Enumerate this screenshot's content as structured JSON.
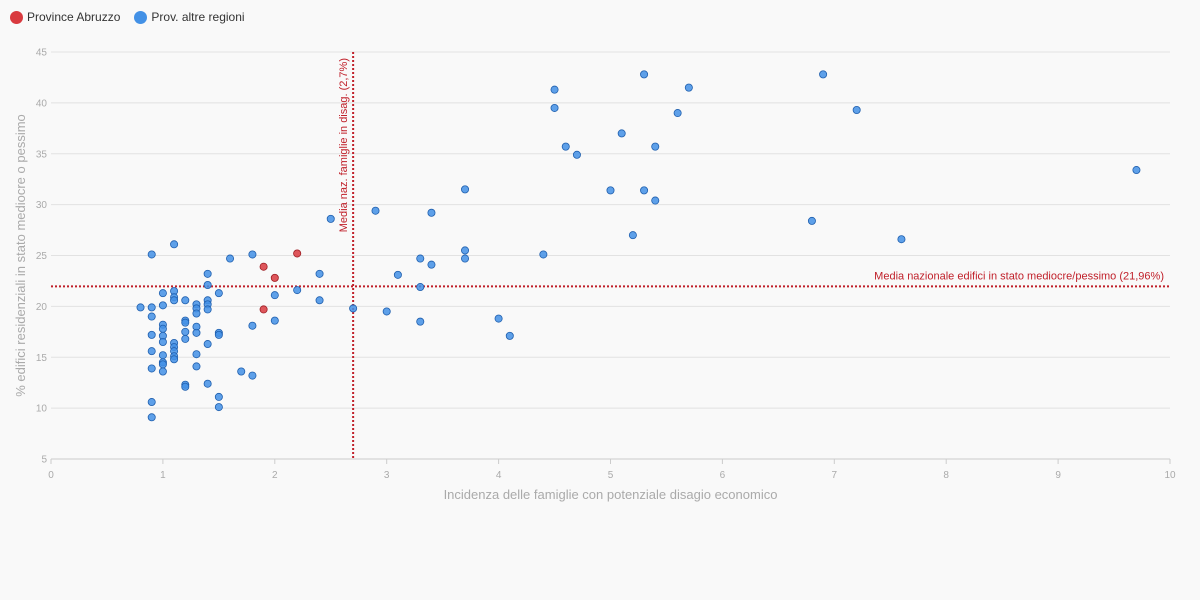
{
  "legend": [
    {
      "label": "Province Abruzzo",
      "color": "#d93a3f"
    },
    {
      "label": "Prov. altre regioni",
      "color": "#4391e6"
    }
  ],
  "chart_data": {
    "type": "scatter",
    "xlabel": "Incidenza delle famiglie con potenziale disagio economico",
    "ylabel": "% edifici residenziali in stato mediocre o pessimo",
    "xlim": [
      0,
      10
    ],
    "ylim": [
      5,
      45
    ],
    "x_ticks": [
      "0",
      "1",
      "2",
      "3",
      "4",
      "5",
      "6",
      "7",
      "8",
      "9",
      "10"
    ],
    "y_ticks": [
      "5",
      "10",
      "15",
      "20",
      "25",
      "30",
      "35",
      "40",
      "45"
    ],
    "grid": "horizontal",
    "legend_position": "top-left",
    "reference_lines": [
      {
        "axis": "y",
        "value": 21.96,
        "label": "Media nazionale edifici in stato mediocre/pessimo (21,96%)",
        "color": "#c0202a"
      },
      {
        "axis": "x",
        "value": 2.7,
        "label": "Media naz. famiglie in disag. (2,7%)",
        "color": "#c0202a"
      }
    ],
    "series": [
      {
        "name": "Province Abruzzo",
        "color": "#d93a3f",
        "points": [
          [
            1.9,
            23.9
          ],
          [
            2.0,
            22.8
          ],
          [
            2.2,
            25.2
          ],
          [
            1.9,
            19.7
          ]
        ]
      },
      {
        "name": "Prov. altre regioni",
        "color": "#4391e6",
        "points": [
          [
            0.8,
            19.9
          ],
          [
            0.9,
            25.1
          ],
          [
            0.9,
            19.9
          ],
          [
            0.9,
            19.0
          ],
          [
            0.9,
            17.2
          ],
          [
            0.9,
            15.6
          ],
          [
            0.9,
            13.9
          ],
          [
            0.9,
            10.6
          ],
          [
            0.9,
            9.1
          ],
          [
            1.0,
            21.3
          ],
          [
            1.0,
            20.1
          ],
          [
            1.0,
            18.2
          ],
          [
            1.0,
            17.8
          ],
          [
            1.0,
            17.1
          ],
          [
            1.0,
            16.5
          ],
          [
            1.0,
            15.2
          ],
          [
            1.0,
            14.5
          ],
          [
            1.0,
            14.3
          ],
          [
            1.0,
            13.6
          ],
          [
            1.1,
            26.1
          ],
          [
            1.1,
            21.5
          ],
          [
            1.1,
            20.9
          ],
          [
            1.1,
            20.6
          ],
          [
            1.1,
            16.4
          ],
          [
            1.1,
            16.0
          ],
          [
            1.1,
            15.6
          ],
          [
            1.1,
            15.1
          ],
          [
            1.1,
            14.8
          ],
          [
            1.2,
            20.6
          ],
          [
            1.2,
            18.6
          ],
          [
            1.2,
            18.4
          ],
          [
            1.2,
            17.5
          ],
          [
            1.2,
            16.8
          ],
          [
            1.2,
            12.3
          ],
          [
            1.2,
            12.1
          ],
          [
            1.3,
            20.2
          ],
          [
            1.3,
            19.8
          ],
          [
            1.3,
            19.3
          ],
          [
            1.3,
            18.0
          ],
          [
            1.3,
            17.4
          ],
          [
            1.3,
            15.3
          ],
          [
            1.3,
            14.1
          ],
          [
            1.4,
            23.2
          ],
          [
            1.4,
            22.1
          ],
          [
            1.4,
            20.6
          ],
          [
            1.4,
            20.2
          ],
          [
            1.4,
            19.7
          ],
          [
            1.4,
            16.3
          ],
          [
            1.4,
            12.4
          ],
          [
            1.5,
            21.3
          ],
          [
            1.5,
            17.4
          ],
          [
            1.5,
            17.2
          ],
          [
            1.5,
            11.1
          ],
          [
            1.5,
            10.1
          ],
          [
            1.6,
            24.7
          ],
          [
            1.7,
            13.6
          ],
          [
            1.8,
            25.1
          ],
          [
            1.8,
            18.1
          ],
          [
            1.8,
            13.2
          ],
          [
            2.0,
            21.1
          ],
          [
            2.0,
            18.6
          ],
          [
            2.2,
            21.6
          ],
          [
            2.4,
            23.2
          ],
          [
            2.4,
            20.6
          ],
          [
            2.5,
            28.6
          ],
          [
            2.7,
            19.8
          ],
          [
            2.9,
            29.4
          ],
          [
            3.0,
            19.5
          ],
          [
            3.1,
            23.1
          ],
          [
            3.3,
            24.7
          ],
          [
            3.3,
            21.9
          ],
          [
            3.3,
            18.5
          ],
          [
            3.4,
            29.2
          ],
          [
            3.4,
            24.1
          ],
          [
            3.7,
            31.5
          ],
          [
            3.7,
            25.5
          ],
          [
            3.7,
            24.7
          ],
          [
            4.0,
            18.8
          ],
          [
            4.1,
            17.1
          ],
          [
            4.4,
            25.1
          ],
          [
            4.5,
            41.3
          ],
          [
            4.5,
            39.5
          ],
          [
            4.6,
            35.7
          ],
          [
            4.7,
            34.9
          ],
          [
            5.0,
            31.4
          ],
          [
            5.1,
            37.0
          ],
          [
            5.2,
            27.0
          ],
          [
            5.3,
            42.8
          ],
          [
            5.3,
            31.4
          ],
          [
            5.4,
            35.7
          ],
          [
            5.4,
            30.4
          ],
          [
            5.6,
            39.0
          ],
          [
            5.7,
            41.5
          ],
          [
            6.8,
            28.4
          ],
          [
            6.9,
            42.8
          ],
          [
            7.2,
            39.3
          ],
          [
            7.6,
            26.6
          ],
          [
            9.7,
            33.4
          ]
        ]
      }
    ]
  }
}
